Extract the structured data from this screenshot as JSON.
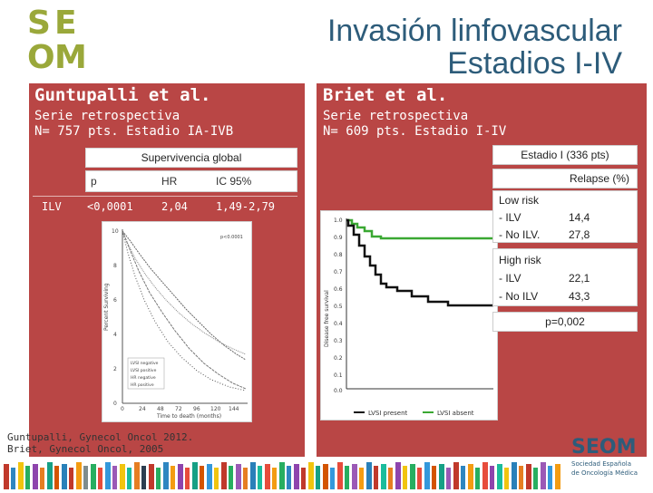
{
  "logo": {
    "letters": [
      "S",
      "E",
      "O",
      "M"
    ]
  },
  "slide": {
    "title_line1": "Invasión linfovascular",
    "title_line2": "Estadios I-IV"
  },
  "left": {
    "study_title": "Guntupalli et al.",
    "subtitle_line1": "Serie retrospectiva",
    "subtitle_line2": "N= 757 pts. Estadio IA-IVB",
    "table_caption": "Supervivencia global",
    "headers": [
      "p",
      "HR",
      "IC 95%"
    ],
    "row_label": "ILV",
    "row_values": [
      "<0,0001",
      "2,04",
      "1,49-2,79"
    ]
  },
  "km_left": {
    "y_ticks": [
      "10",
      "8",
      "6",
      "4",
      "2",
      "0"
    ],
    "x_ticks": [
      "0",
      "24",
      "48",
      "72",
      "96",
      "120",
      "144"
    ],
    "ylabel": "Percent Surviving",
    "xlabel": "Time to death (months)",
    "pval": "p<0.0001",
    "legend": [
      "LVSI negative",
      "LVSI positive",
      "HR negative",
      "HR positive"
    ]
  },
  "right": {
    "study_title": "Briet et al.",
    "subtitle_line1": "Serie retrospectiva",
    "subtitle_line2": "N= 609 pts. Estadio I-IV",
    "stage_title": "Estadio I (336 pts)",
    "relapse_header": "Relapse (%)",
    "low_risk": "Low risk",
    "high_risk": "High risk",
    "ilv": "- ILV",
    "no_ilv_low": "- No ILV.",
    "no_ilv_high": "- No ILV",
    "low_vals": [
      "14,4",
      "27,8"
    ],
    "high_vals": [
      "22,1",
      "43,3"
    ],
    "pvalue": "p=0,002"
  },
  "km_right": {
    "y_ticks": [
      "1.0",
      "0.9",
      "0.8",
      "0.7",
      "0.6",
      "0.5",
      "0.4",
      "0.3",
      "0.2",
      "0.1",
      "0.0"
    ],
    "ylabel": "Disease free survival",
    "legend_present": "LVSI present",
    "legend_absent": "LVSI absent"
  },
  "footer": {
    "ref1": "Guntupalli, Gynecol Oncol 2012.",
    "ref2": "Briet, Gynecol Oncol, 2005"
  },
  "seom_logo": {
    "wordmark": "SEOM",
    "line1": "Sociedad Española",
    "line2": "de Oncología Médica"
  },
  "colors": {
    "panel": "#b94645",
    "title": "#2d5c7a",
    "logo_green": "#9aa83a",
    "green_curve": "#3aa832"
  }
}
